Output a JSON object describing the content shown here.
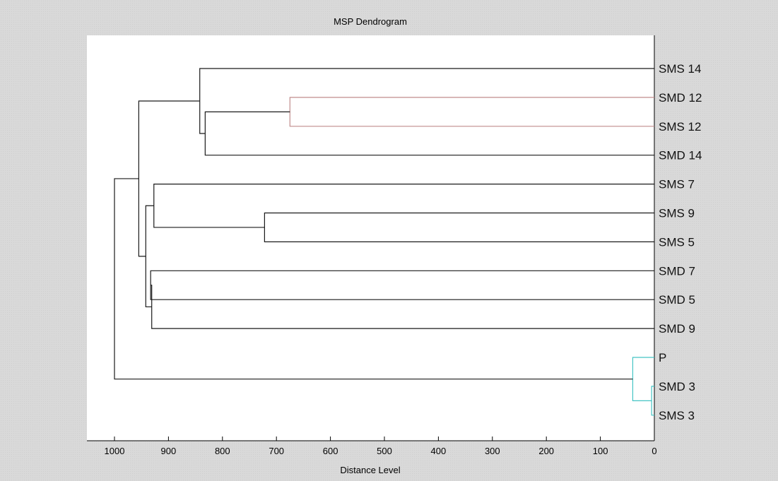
{
  "chart_data": {
    "type": "dendrogram",
    "title": "MSP Dendrogram",
    "xlabel": "Distance Level",
    "ylabel": "",
    "xlim": [
      1050,
      0
    ],
    "x_ticks": [
      1000,
      900,
      800,
      700,
      600,
      500,
      400,
      300,
      200,
      100,
      0
    ],
    "grid": false,
    "leaves": [
      "SMS 14",
      "SMD 12",
      "SMS 12",
      "SMD 14",
      "SMS 7",
      "SMS 9",
      "SMS 5",
      "SMD 7",
      "SMD 5",
      "SMD 9",
      "P",
      "SMD 3",
      "SMS 3"
    ],
    "merges": [
      {
        "id": "m1",
        "children": [
          "SMD 3",
          "SMS 3"
        ],
        "distance": 5,
        "color": "#44c4c4"
      },
      {
        "id": "m2",
        "children": [
          "P",
          "m1"
        ],
        "distance": 40,
        "color": "#44c4c4"
      },
      {
        "id": "m3",
        "children": [
          "SMD 12",
          "SMS 12"
        ],
        "distance": 675,
        "color": "#c08c8c"
      },
      {
        "id": "m4",
        "children": [
          "SMS 9",
          "SMS 5"
        ],
        "distance": 722,
        "color": "#1a1a1a"
      },
      {
        "id": "m5",
        "children": [
          "m3",
          "SMD 14"
        ],
        "distance": 832,
        "color": "#1a1a1a"
      },
      {
        "id": "m6",
        "children": [
          "SMS 14",
          "m5"
        ],
        "distance": 842,
        "color": "#1a1a1a"
      },
      {
        "id": "m7",
        "children": [
          "SMS 7",
          "m4"
        ],
        "distance": 927,
        "color": "#1a1a1a"
      },
      {
        "id": "m8",
        "children": [
          "SMD 7",
          "SMD 5"
        ],
        "distance": 933,
        "color": "#1a1a1a"
      },
      {
        "id": "m9",
        "children": [
          "m8",
          "SMD 9"
        ],
        "distance": 931,
        "color": "#1a1a1a"
      },
      {
        "id": "m10",
        "children": [
          "m7",
          "m9"
        ],
        "distance": 942,
        "color": "#1a1a1a"
      },
      {
        "id": "m11",
        "children": [
          "m10",
          "m6"
        ],
        "distance": 955,
        "color": "#1a1a1a"
      },
      {
        "id": "m12",
        "children": [
          "m11",
          "m2"
        ],
        "distance": 1000,
        "color": "#1a1a1a"
      }
    ]
  }
}
